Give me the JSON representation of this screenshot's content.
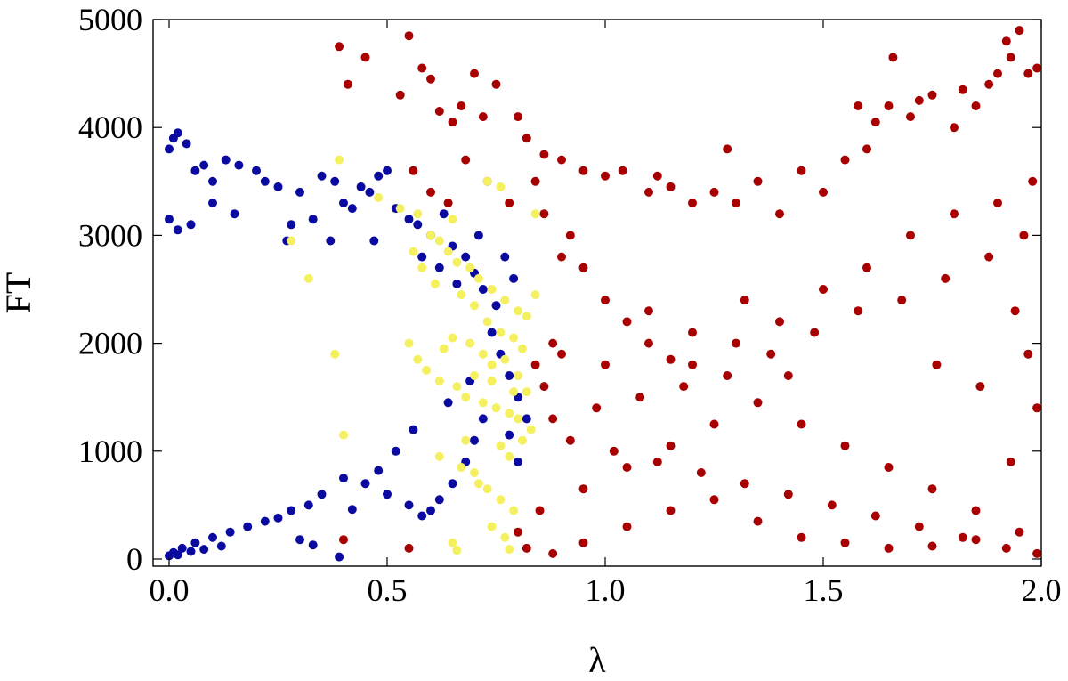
{
  "chart_data": {
    "type": "scatter",
    "title": "",
    "xlabel": "λ",
    "ylabel": "FT",
    "xlim": [
      0.0,
      2.0
    ],
    "ylim": [
      0,
      5000
    ],
    "x_ticks": [
      "0.0",
      "0.5",
      "1.0",
      "1.5",
      "2.0"
    ],
    "y_ticks": [
      "0",
      "1000",
      "2000",
      "3000",
      "4000",
      "5000"
    ],
    "grid": false,
    "legend": "none",
    "series": [
      {
        "color": "#0a0aa0",
        "points": [
          [
            0.0,
            3800
          ],
          [
            0.01,
            3900
          ],
          [
            0.02,
            3950
          ],
          [
            0.04,
            3850
          ],
          [
            0.0,
            3150
          ],
          [
            0.02,
            3050
          ],
          [
            0.06,
            3600
          ],
          [
            0.08,
            3650
          ],
          [
            0.1,
            3500
          ],
          [
            0.13,
            3700
          ],
          [
            0.16,
            3650
          ],
          [
            0.2,
            3600
          ],
          [
            0.22,
            3500
          ],
          [
            0.25,
            3450
          ],
          [
            0.3,
            3400
          ],
          [
            0.35,
            3550
          ],
          [
            0.38,
            3500
          ],
          [
            0.4,
            3300
          ],
          [
            0.44,
            3450
          ],
          [
            0.48,
            3550
          ],
          [
            0.5,
            3600
          ],
          [
            0.46,
            3400
          ],
          [
            0.42,
            3250
          ],
          [
            0.28,
            3100
          ],
          [
            0.15,
            3200
          ],
          [
            0.05,
            3100
          ],
          [
            0.1,
            3300
          ],
          [
            0.33,
            3150
          ],
          [
            0.52,
            3250
          ],
          [
            0.55,
            3150
          ],
          [
            0.6,
            3000
          ],
          [
            0.65,
            2900
          ],
          [
            0.68,
            2800
          ],
          [
            0.7,
            2650
          ],
          [
            0.72,
            2500
          ],
          [
            0.75,
            2350
          ],
          [
            0.58,
            2800
          ],
          [
            0.62,
            2700
          ],
          [
            0.66,
            2550
          ],
          [
            0.74,
            2100
          ],
          [
            0.76,
            1900
          ],
          [
            0.78,
            1700
          ],
          [
            0.8,
            1500
          ],
          [
            0.82,
            1300
          ],
          [
            0.72,
            1300
          ],
          [
            0.7,
            1100
          ],
          [
            0.68,
            900
          ],
          [
            0.65,
            700
          ],
          [
            0.62,
            550
          ],
          [
            0.6,
            450
          ],
          [
            0.58,
            400
          ],
          [
            0.55,
            500
          ],
          [
            0.5,
            600
          ],
          [
            0.45,
            700
          ],
          [
            0.4,
            750
          ],
          [
            0.35,
            600
          ],
          [
            0.32,
            500
          ],
          [
            0.28,
            450
          ],
          [
            0.25,
            380
          ],
          [
            0.22,
            350
          ],
          [
            0.18,
            300
          ],
          [
            0.14,
            250
          ],
          [
            0.1,
            200
          ],
          [
            0.06,
            150
          ],
          [
            0.03,
            100
          ],
          [
            0.01,
            60
          ],
          [
            0.0,
            30
          ],
          [
            0.02,
            40
          ],
          [
            0.05,
            70
          ],
          [
            0.08,
            90
          ],
          [
            0.12,
            120
          ],
          [
            0.3,
            180
          ],
          [
            0.33,
            130
          ],
          [
            0.39,
            20
          ],
          [
            0.42,
            460
          ],
          [
            0.48,
            820
          ],
          [
            0.52,
            1000
          ],
          [
            0.56,
            1200
          ],
          [
            0.64,
            1450
          ],
          [
            0.69,
            1650
          ],
          [
            0.78,
            1150
          ],
          [
            0.8,
            900
          ],
          [
            0.79,
            2600
          ],
          [
            0.77,
            2800
          ],
          [
            0.71,
            3000
          ],
          [
            0.63,
            3200
          ],
          [
            0.57,
            3100
          ],
          [
            0.47,
            2950
          ],
          [
            0.37,
            2950
          ],
          [
            0.27,
            2950
          ]
        ]
      },
      {
        "color": "#a80000",
        "points": [
          [
            0.39,
            4750
          ],
          [
            0.41,
            4400
          ],
          [
            0.45,
            4650
          ],
          [
            0.53,
            4300
          ],
          [
            0.55,
            4850
          ],
          [
            0.58,
            4550
          ],
          [
            0.6,
            4450
          ],
          [
            0.62,
            4150
          ],
          [
            0.65,
            4050
          ],
          [
            0.67,
            4200
          ],
          [
            0.7,
            4500
          ],
          [
            0.72,
            4100
          ],
          [
            0.75,
            4400
          ],
          [
            0.8,
            4100
          ],
          [
            0.82,
            3900
          ],
          [
            0.86,
            3750
          ],
          [
            0.9,
            3700
          ],
          [
            0.95,
            3600
          ],
          [
            1.0,
            3550
          ],
          [
            1.04,
            3600
          ],
          [
            1.1,
            3400
          ],
          [
            1.15,
            3450
          ],
          [
            1.2,
            3300
          ],
          [
            1.25,
            3400
          ],
          [
            1.3,
            3300
          ],
          [
            1.35,
            3500
          ],
          [
            1.4,
            3200
          ],
          [
            1.45,
            3600
          ],
          [
            1.5,
            3400
          ],
          [
            1.55,
            3700
          ],
          [
            1.6,
            3800
          ],
          [
            1.65,
            4200
          ],
          [
            1.7,
            4100
          ],
          [
            1.75,
            4300
          ],
          [
            1.8,
            4000
          ],
          [
            1.85,
            4200
          ],
          [
            1.88,
            4400
          ],
          [
            1.9,
            4500
          ],
          [
            1.93,
            4650
          ],
          [
            1.97,
            4500
          ],
          [
            1.99,
            4550
          ],
          [
            1.95,
            4900
          ],
          [
            1.92,
            4800
          ],
          [
            1.82,
            4350
          ],
          [
            1.72,
            4250
          ],
          [
            1.62,
            4050
          ],
          [
            1.58,
            4200
          ],
          [
            1.66,
            4650
          ],
          [
            1.28,
            3800
          ],
          [
            1.12,
            3550
          ],
          [
            0.92,
            3000
          ],
          [
            0.95,
            2700
          ],
          [
            1.0,
            2400
          ],
          [
            1.05,
            2200
          ],
          [
            1.1,
            2000
          ],
          [
            1.15,
            1850
          ],
          [
            1.2,
            1800
          ],
          [
            1.3,
            2000
          ],
          [
            1.4,
            2200
          ],
          [
            1.5,
            2500
          ],
          [
            1.6,
            2700
          ],
          [
            1.7,
            3000
          ],
          [
            1.8,
            3200
          ],
          [
            1.9,
            3300
          ],
          [
            1.98,
            3500
          ],
          [
            1.96,
            3000
          ],
          [
            1.88,
            2800
          ],
          [
            1.78,
            2600
          ],
          [
            1.68,
            2400
          ],
          [
            1.58,
            2300
          ],
          [
            1.48,
            2100
          ],
          [
            1.38,
            1900
          ],
          [
            1.28,
            1700
          ],
          [
            1.18,
            1600
          ],
          [
            1.08,
            1500
          ],
          [
            0.98,
            1400
          ],
          [
            0.88,
            1300
          ],
          [
            0.92,
            1100
          ],
          [
            1.02,
            1000
          ],
          [
            1.12,
            900
          ],
          [
            1.22,
            800
          ],
          [
            1.32,
            700
          ],
          [
            1.42,
            600
          ],
          [
            1.52,
            500
          ],
          [
            1.62,
            400
          ],
          [
            1.72,
            300
          ],
          [
            1.82,
            200
          ],
          [
            1.92,
            100
          ],
          [
            1.99,
            50
          ],
          [
            1.95,
            250
          ],
          [
            1.85,
            450
          ],
          [
            1.75,
            650
          ],
          [
            1.65,
            850
          ],
          [
            1.55,
            1050
          ],
          [
            1.45,
            1250
          ],
          [
            1.35,
            1450
          ],
          [
            1.25,
            1250
          ],
          [
            1.15,
            1050
          ],
          [
            1.05,
            850
          ],
          [
            0.95,
            650
          ],
          [
            0.85,
            450
          ],
          [
            0.8,
            250
          ],
          [
            0.82,
            100
          ],
          [
            0.88,
            50
          ],
          [
            0.95,
            150
          ],
          [
            1.05,
            300
          ],
          [
            1.15,
            450
          ],
          [
            1.25,
            550
          ],
          [
            1.35,
            350
          ],
          [
            1.45,
            200
          ],
          [
            1.55,
            150
          ],
          [
            1.65,
            100
          ],
          [
            1.75,
            120
          ],
          [
            1.85,
            180
          ],
          [
            1.93,
            900
          ],
          [
            1.99,
            1400
          ],
          [
            1.97,
            1900
          ],
          [
            1.94,
            2300
          ],
          [
            1.86,
            1600
          ],
          [
            1.76,
            1800
          ],
          [
            0.55,
            100
          ],
          [
            0.4,
            180
          ],
          [
            0.56,
            3600
          ],
          [
            0.6,
            3400
          ],
          [
            0.64,
            3300
          ],
          [
            0.68,
            3700
          ],
          [
            0.73,
            3500
          ],
          [
            0.78,
            3300
          ],
          [
            0.84,
            3500
          ],
          [
            0.86,
            3200
          ],
          [
            0.9,
            2800
          ],
          [
            0.88,
            2000
          ],
          [
            0.84,
            1800
          ],
          [
            0.86,
            1600
          ],
          [
            0.9,
            1900
          ],
          [
            1.0,
            1800
          ],
          [
            1.1,
            2300
          ],
          [
            1.2,
            2100
          ],
          [
            1.32,
            2400
          ],
          [
            1.42,
            1700
          ]
        ]
      },
      {
        "color": "#f5f060",
        "points": [
          [
            0.39,
            3700
          ],
          [
            0.48,
            3350
          ],
          [
            0.53,
            3250
          ],
          [
            0.57,
            3200
          ],
          [
            0.65,
            3150
          ],
          [
            0.73,
            3500
          ],
          [
            0.76,
            3450
          ],
          [
            0.84,
            3200
          ],
          [
            0.6,
            3000
          ],
          [
            0.62,
            2950
          ],
          [
            0.64,
            2850
          ],
          [
            0.66,
            2750
          ],
          [
            0.69,
            2700
          ],
          [
            0.71,
            2600
          ],
          [
            0.74,
            2500
          ],
          [
            0.77,
            2400
          ],
          [
            0.8,
            2300
          ],
          [
            0.82,
            2250
          ],
          [
            0.84,
            2450
          ],
          [
            0.56,
            2850
          ],
          [
            0.58,
            2700
          ],
          [
            0.61,
            2550
          ],
          [
            0.67,
            2450
          ],
          [
            0.7,
            2350
          ],
          [
            0.73,
            2200
          ],
          [
            0.76,
            2100
          ],
          [
            0.79,
            2050
          ],
          [
            0.81,
            1950
          ],
          [
            0.32,
            2600
          ],
          [
            0.28,
            2950
          ],
          [
            0.38,
            1900
          ],
          [
            0.55,
            2000
          ],
          [
            0.57,
            1850
          ],
          [
            0.59,
            1750
          ],
          [
            0.62,
            1650
          ],
          [
            0.66,
            1600
          ],
          [
            0.68,
            1500
          ],
          [
            0.72,
            1450
          ],
          [
            0.75,
            1400
          ],
          [
            0.78,
            1350
          ],
          [
            0.8,
            1300
          ],
          [
            0.83,
            1200
          ],
          [
            0.7,
            1700
          ],
          [
            0.74,
            1800
          ],
          [
            0.77,
            1850
          ],
          [
            0.63,
            1950
          ],
          [
            0.65,
            2050
          ],
          [
            0.69,
            2000
          ],
          [
            0.72,
            1900
          ],
          [
            0.74,
            1650
          ],
          [
            0.79,
            1550
          ],
          [
            0.8,
            1700
          ],
          [
            0.82,
            1550
          ],
          [
            0.4,
            1150
          ],
          [
            0.62,
            950
          ],
          [
            0.67,
            850
          ],
          [
            0.7,
            800
          ],
          [
            0.73,
            650
          ],
          [
            0.76,
            550
          ],
          [
            0.79,
            450
          ],
          [
            0.65,
            150
          ],
          [
            0.66,
            80
          ],
          [
            0.78,
            90
          ],
          [
            0.77,
            200
          ],
          [
            0.74,
            300
          ],
          [
            0.71,
            700
          ],
          [
            0.68,
            1100
          ],
          [
            0.76,
            1050
          ],
          [
            0.78,
            950
          ],
          [
            0.81,
            1100
          ]
        ]
      }
    ]
  }
}
